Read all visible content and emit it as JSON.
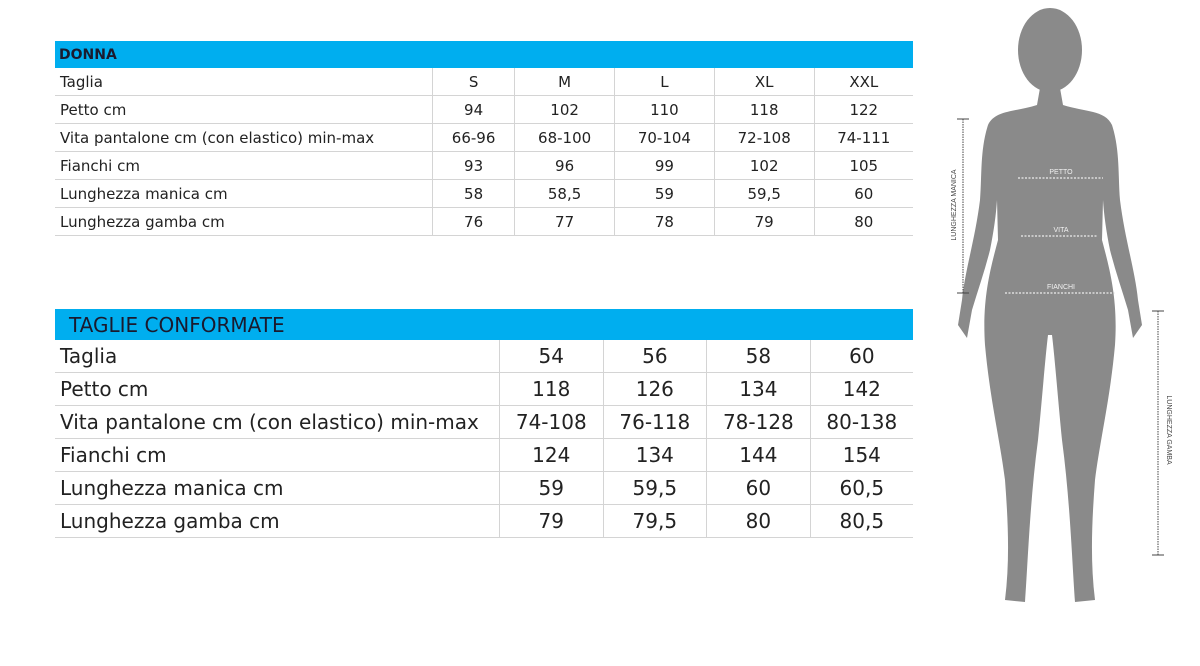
{
  "donna": {
    "title": "DONNA",
    "rows": [
      {
        "label": "Taglia",
        "values": [
          "S",
          "M",
          "L",
          "XL",
          "XXL"
        ]
      },
      {
        "label": "Petto cm",
        "values": [
          "94",
          "102",
          "110",
          "118",
          "122"
        ]
      },
      {
        "label": "Vita pantalone cm (con elastico) min-max",
        "values": [
          "66-96",
          "68-100",
          "70-104",
          "72-108",
          "74-111"
        ]
      },
      {
        "label": "Fianchi cm",
        "values": [
          "93",
          "96",
          "99",
          "102",
          "105"
        ]
      },
      {
        "label": "Lunghezza manica cm",
        "values": [
          "58",
          "58,5",
          "59",
          "59,5",
          "60"
        ]
      },
      {
        "label": "Lunghezza gamba cm",
        "values": [
          "76",
          "77",
          "78",
          "79",
          "80"
        ]
      }
    ]
  },
  "conformate": {
    "title": "TAGLIE CONFORMATE",
    "rows": [
      {
        "label": "Taglia",
        "values": [
          "54",
          "56",
          "58",
          "60"
        ]
      },
      {
        "label": "Petto cm",
        "values": [
          "118",
          "126",
          "134",
          "142"
        ]
      },
      {
        "label": "Vita pantalone cm (con elastico) min-max",
        "values": [
          "74-108",
          "76-118",
          "78-128",
          "80-138"
        ]
      },
      {
        "label": "Fianchi cm",
        "values": [
          "124",
          "134",
          "144",
          "154"
        ]
      },
      {
        "label": "Lunghezza manica cm",
        "values": [
          "59",
          "59,5",
          "60",
          "60,5"
        ]
      },
      {
        "label": "Lunghezza gamba cm",
        "values": [
          "79",
          "79,5",
          "80",
          "80,5"
        ]
      }
    ]
  },
  "figure": {
    "petto": "PETTO",
    "vita": "VITA",
    "fianchi": "FIANCHI",
    "manica": "LUNGHEZZA MANICA",
    "gamba": "LUNGHEZZA GAMBA"
  },
  "colors": {
    "header": "#00aeef",
    "silhouette": "#8a8a8a"
  }
}
